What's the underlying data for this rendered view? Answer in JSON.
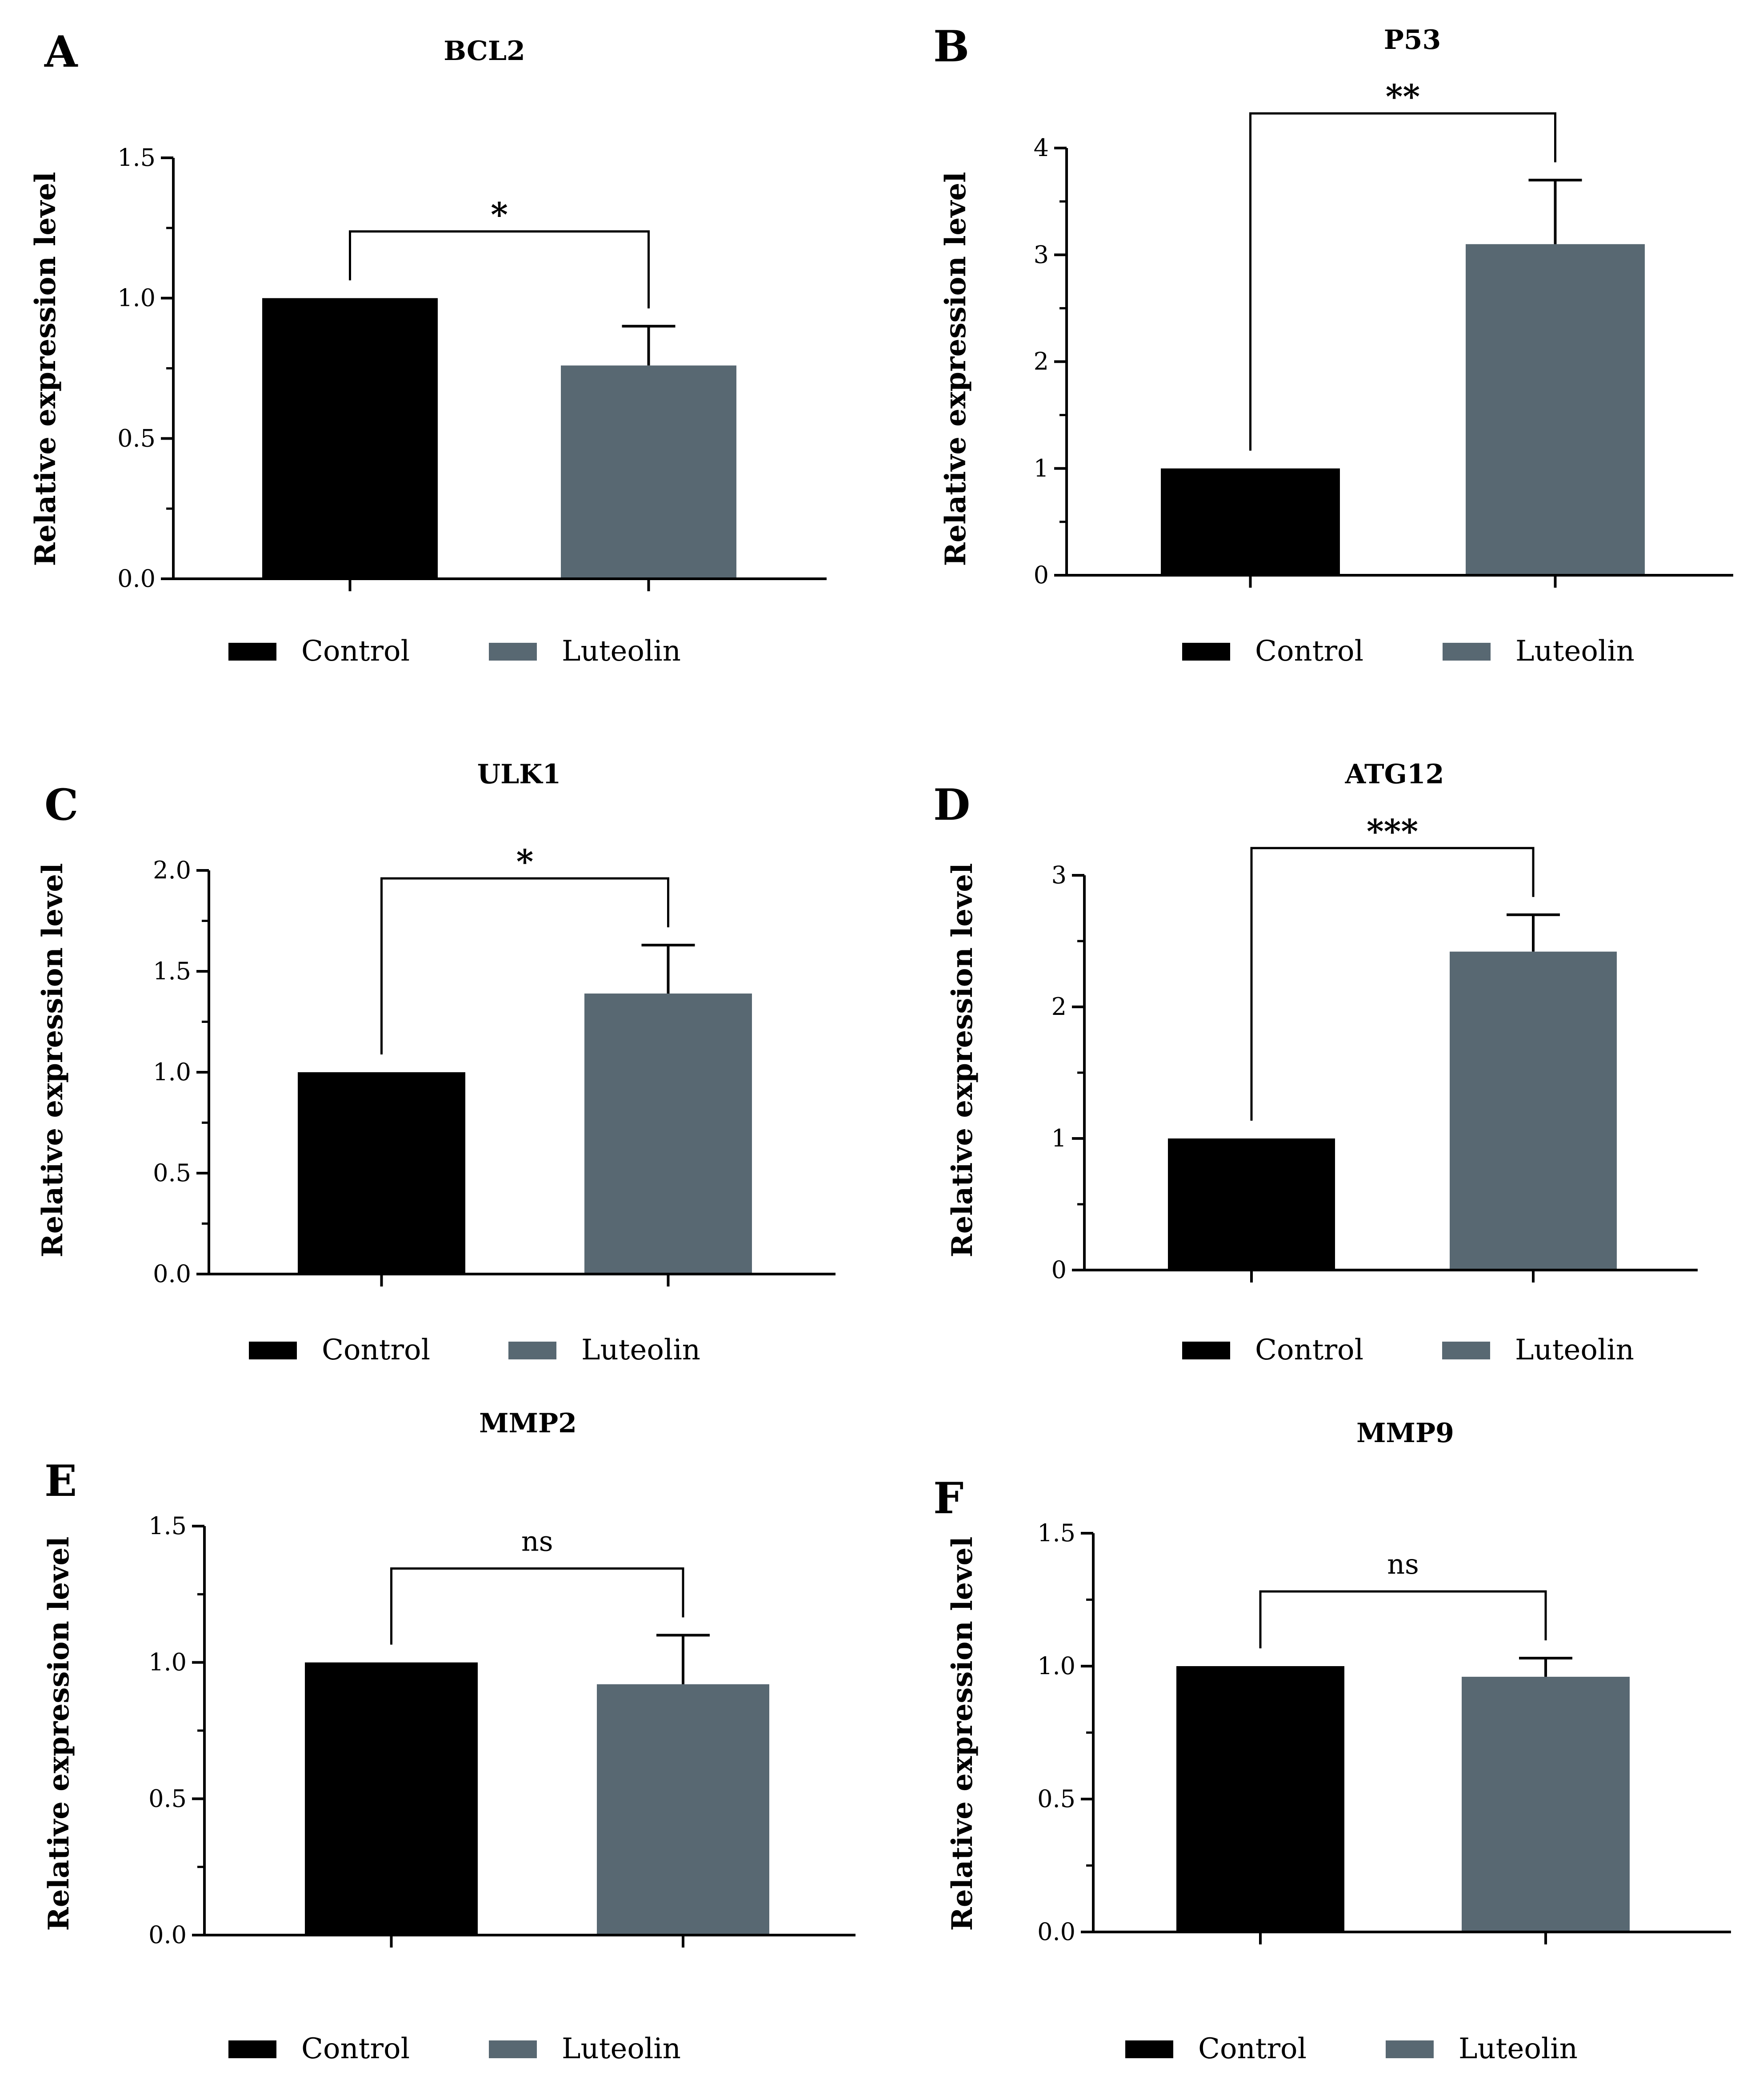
{
  "colors": {
    "control": "#000000",
    "luteolin": "#586872",
    "axis": "#000000"
  },
  "legend": {
    "control_label": "Control",
    "luteolin_label": "Luteolin"
  },
  "chart_data": [
    {
      "panel": "A",
      "type": "bar",
      "title": "BCL2",
      "ylabel": "Relative expression level",
      "xlabel": "",
      "categories": [
        "Control",
        "Luteolin"
      ],
      "values": [
        1.0,
        0.76
      ],
      "errors": [
        0,
        0.14
      ],
      "ylim": [
        0,
        1.5
      ],
      "yticks": [
        "0.0",
        "0.5",
        "1.0",
        "1.5"
      ],
      "significance": "*"
    },
    {
      "panel": "B",
      "type": "bar",
      "title": "P53",
      "ylabel": "Relative expression level",
      "xlabel": "",
      "categories": [
        "Control",
        "Luteolin"
      ],
      "values": [
        1.0,
        3.1
      ],
      "errors": [
        0,
        0.6
      ],
      "ylim": [
        0,
        4
      ],
      "yticks": [
        "0",
        "1",
        "2",
        "3",
        "4"
      ],
      "significance": "**"
    },
    {
      "panel": "C",
      "type": "bar",
      "title": "ULK1",
      "ylabel": "Relative expression level",
      "xlabel": "",
      "categories": [
        "Control",
        "Luteolin"
      ],
      "values": [
        1.0,
        1.39
      ],
      "errors": [
        0,
        0.24
      ],
      "ylim": [
        0,
        2.0
      ],
      "yticks": [
        "0.0",
        "0.5",
        "1.0",
        "1.5",
        "2.0"
      ],
      "significance": "*"
    },
    {
      "panel": "D",
      "type": "bar",
      "title": "ATG12",
      "ylabel": "Relative expression level",
      "xlabel": "",
      "categories": [
        "Control",
        "Luteolin"
      ],
      "values": [
        1.0,
        2.42
      ],
      "errors": [
        0,
        0.28
      ],
      "ylim": [
        0,
        3
      ],
      "yticks": [
        "0",
        "1",
        "2",
        "3"
      ],
      "significance": "***"
    },
    {
      "panel": "E",
      "type": "bar",
      "title": "MMP2",
      "ylabel": "Relative expression level",
      "xlabel": "",
      "categories": [
        "Control",
        "Luteolin"
      ],
      "values": [
        1.0,
        0.92
      ],
      "errors": [
        0,
        0.18
      ],
      "ylim": [
        0,
        1.5
      ],
      "yticks": [
        "0.0",
        "0.5",
        "1.0",
        "1.5"
      ],
      "significance": "ns"
    },
    {
      "panel": "F",
      "type": "bar",
      "title": "MMP9",
      "ylabel": "Relative expression level",
      "xlabel": "",
      "categories": [
        "Control",
        "Luteolin"
      ],
      "values": [
        1.0,
        0.96
      ],
      "errors": [
        0,
        0.07
      ],
      "ylim": [
        0,
        1.5
      ],
      "yticks": [
        "0.0",
        "0.5",
        "1.0",
        "1.5"
      ],
      "significance": "ns"
    }
  ]
}
